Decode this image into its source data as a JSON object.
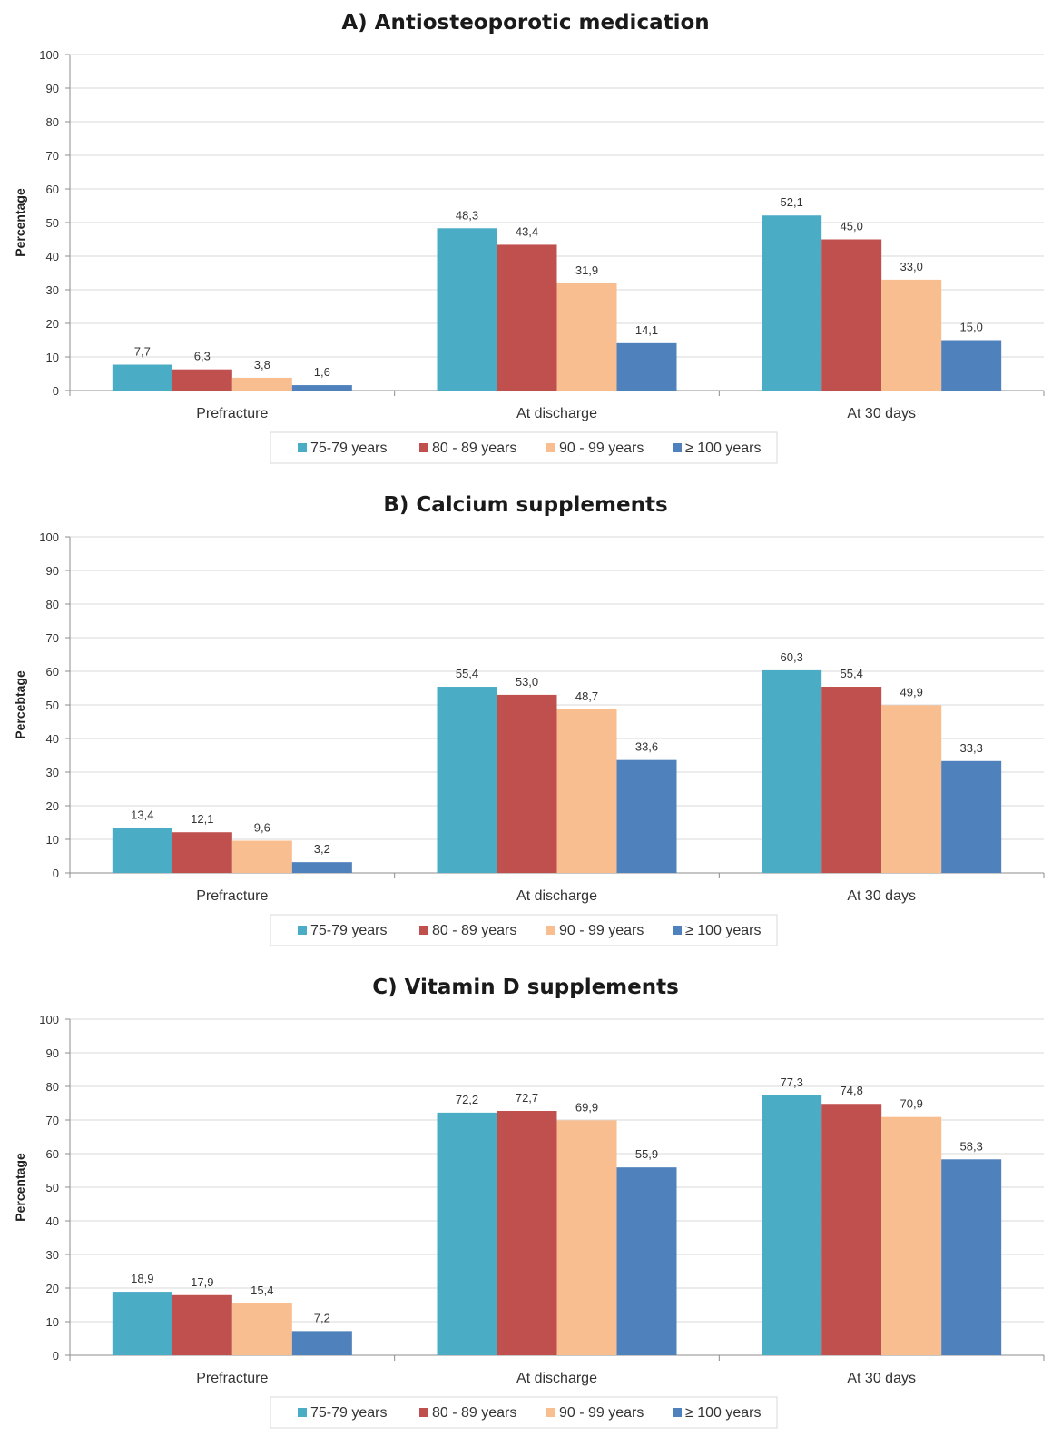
{
  "colors": {
    "series": [
      "#4bacc6",
      "#c0504d",
      "#f9be8f",
      "#4f81bd"
    ],
    "grid": "#d9d9d9",
    "axis": "#8c8c8c"
  },
  "chart_data": [
    {
      "type": "bar",
      "title": "A) Antiosteoporotic medication",
      "xlabel": "",
      "ylabel": "Percentage",
      "ylim": [
        0,
        100
      ],
      "yticks": [
        "0",
        "10",
        "20",
        "30",
        "40",
        "50",
        "60",
        "70",
        "80",
        "90",
        "100"
      ],
      "categories": [
        "Prefracture",
        "At discharge",
        "At 30 days"
      ],
      "legend_position": "bottom",
      "grid": true,
      "series": [
        {
          "name": "75-79 years",
          "values": [
            7.7,
            48.3,
            52.1
          ],
          "labels": [
            "7,7",
            "48,3",
            "52,1"
          ]
        },
        {
          "name": "80 - 89 years",
          "values": [
            6.3,
            43.4,
            45.0
          ],
          "labels": [
            "6,3",
            "43,4",
            "45,0"
          ]
        },
        {
          "name": "90 - 99 years",
          "values": [
            3.8,
            31.9,
            33.0
          ],
          "labels": [
            "3,8",
            "31,9",
            "33,0"
          ]
        },
        {
          "name": "≥ 100 years",
          "values": [
            1.6,
            14.1,
            15.0
          ],
          "labels": [
            "1,6",
            "14,1",
            "15,0"
          ]
        }
      ]
    },
    {
      "type": "bar",
      "title": "B) Calcium supplements",
      "xlabel": "",
      "ylabel": "Percebtage",
      "ylim": [
        0,
        100
      ],
      "yticks": [
        "0",
        "10",
        "20",
        "30",
        "40",
        "50",
        "60",
        "70",
        "80",
        "90",
        "100"
      ],
      "categories": [
        "Prefracture",
        "At discharge",
        "At 30 days"
      ],
      "legend_position": "bottom",
      "grid": true,
      "series": [
        {
          "name": "75-79 years",
          "values": [
            13.4,
            55.4,
            60.3
          ],
          "labels": [
            "13,4",
            "55,4",
            "60,3"
          ]
        },
        {
          "name": "80 - 89 years",
          "values": [
            12.1,
            53.0,
            55.4
          ],
          "labels": [
            "12,1",
            "53,0",
            "55,4"
          ]
        },
        {
          "name": "90 - 99 years",
          "values": [
            9.6,
            48.7,
            49.9
          ],
          "labels": [
            "9,6",
            "48,7",
            "49,9"
          ]
        },
        {
          "name": "≥ 100 years",
          "values": [
            3.2,
            33.6,
            33.3
          ],
          "labels": [
            "3,2",
            "33,6",
            "33,3"
          ]
        }
      ]
    },
    {
      "type": "bar",
      "title": "C) Vitamin D supplements",
      "xlabel": "",
      "ylabel": "Percentage",
      "ylim": [
        0,
        100
      ],
      "yticks": [
        "0",
        "10",
        "20",
        "30",
        "40",
        "50",
        "60",
        "70",
        "80",
        "90",
        "100"
      ],
      "categories": [
        "Prefracture",
        "At discharge",
        "At 30 days"
      ],
      "legend_position": "bottom",
      "grid": true,
      "series": [
        {
          "name": "75-79 years",
          "values": [
            18.9,
            72.2,
            77.3
          ],
          "labels": [
            "18,9",
            "72,2",
            "77,3"
          ]
        },
        {
          "name": "80 - 89 years",
          "values": [
            17.9,
            72.7,
            74.8
          ],
          "labels": [
            "17,9",
            "72,7",
            "74,8"
          ]
        },
        {
          "name": "90 - 99 years",
          "values": [
            15.4,
            69.9,
            70.9
          ],
          "labels": [
            "15,4",
            "69,9",
            "70,9"
          ]
        },
        {
          "name": "≥ 100 years",
          "values": [
            7.2,
            55.9,
            58.3
          ],
          "labels": [
            "7,2",
            "55,9",
            "58,3"
          ]
        }
      ]
    }
  ]
}
